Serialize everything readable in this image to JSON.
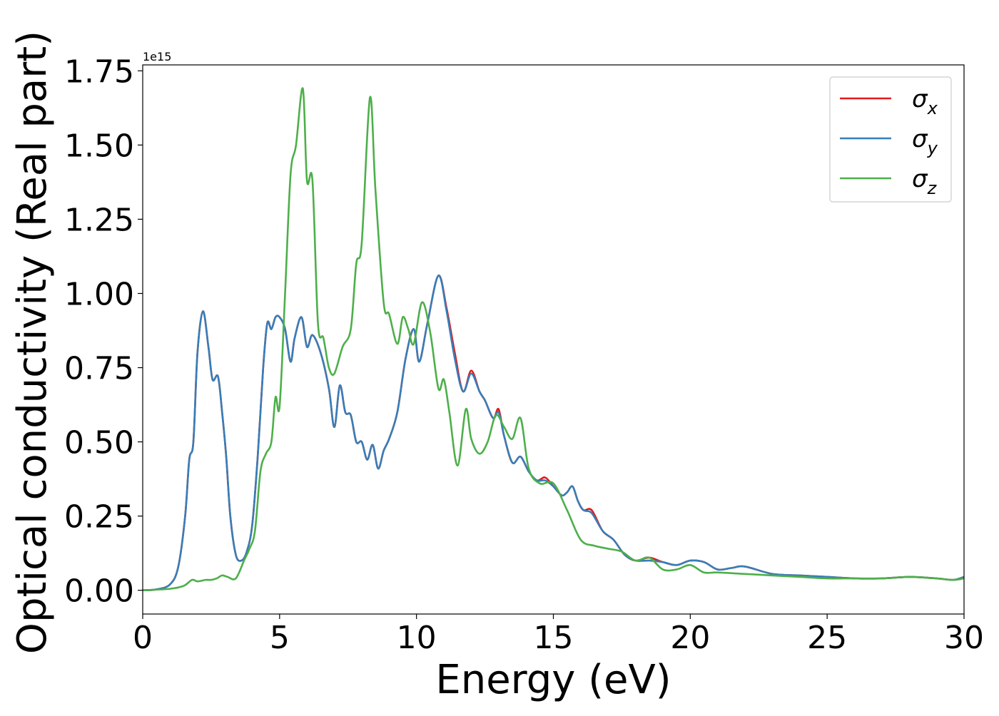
{
  "chart_data": {
    "type": "line",
    "title": "",
    "xlabel": "Energy (eV)",
    "ylabel": "Optical conductivity (Real part)",
    "y_scale_label": "1e15",
    "xlim": [
      0,
      30
    ],
    "ylim": [
      -0.08,
      1.77
    ],
    "xticks": [
      0,
      5,
      10,
      15,
      20,
      25,
      30
    ],
    "xtick_labels": [
      "0",
      "5",
      "10",
      "15",
      "20",
      "25",
      "30"
    ],
    "yticks": [
      0.0,
      0.25,
      0.5,
      0.75,
      1.0,
      1.25,
      1.5,
      1.75
    ],
    "ytick_labels": [
      "0.00",
      "0.25",
      "0.50",
      "0.75",
      "1.00",
      "1.25",
      "1.50",
      "1.75"
    ],
    "grid": false,
    "legend_position": "top-right",
    "series": [
      {
        "name": "σx",
        "legend_symbol": "σ",
        "legend_subscript": "x",
        "color": "#e41a1c",
        "x": [
          0,
          0.5,
          1.0,
          1.3,
          1.55,
          1.7,
          1.85,
          2.0,
          2.2,
          2.4,
          2.55,
          2.75,
          2.9,
          3.05,
          3.2,
          3.4,
          3.6,
          3.8,
          4.0,
          4.2,
          4.4,
          4.55,
          4.7,
          4.85,
          5.0,
          5.2,
          5.4,
          5.55,
          5.8,
          6.0,
          6.2,
          6.5,
          6.8,
          7.0,
          7.2,
          7.4,
          7.6,
          7.8,
          8.0,
          8.2,
          8.4,
          8.6,
          8.8,
          9.0,
          9.3,
          9.6,
          9.9,
          10.1,
          10.4,
          10.8,
          11.1,
          11.4,
          11.7,
          12.0,
          12.3,
          12.5,
          12.8,
          13.0,
          13.2,
          13.5,
          13.8,
          14.1,
          14.4,
          14.7,
          15.0,
          15.3,
          15.5,
          15.7,
          15.9,
          16.1,
          16.4,
          16.8,
          17.2,
          17.6,
          18.0,
          18.5,
          19.0,
          19.5,
          20.0,
          20.5,
          21.0,
          21.5,
          22.0,
          23.0,
          24.0,
          25.0,
          26.0,
          27.0,
          28.0,
          29.0,
          29.6,
          30.0
        ],
        "y": [
          0.0,
          0.003,
          0.02,
          0.08,
          0.25,
          0.44,
          0.5,
          0.8,
          0.94,
          0.82,
          0.71,
          0.72,
          0.6,
          0.45,
          0.25,
          0.12,
          0.1,
          0.13,
          0.22,
          0.45,
          0.75,
          0.9,
          0.88,
          0.92,
          0.92,
          0.88,
          0.77,
          0.85,
          0.92,
          0.82,
          0.86,
          0.8,
          0.68,
          0.55,
          0.69,
          0.6,
          0.59,
          0.5,
          0.5,
          0.44,
          0.49,
          0.41,
          0.47,
          0.51,
          0.6,
          0.78,
          0.88,
          0.77,
          0.9,
          1.06,
          0.95,
          0.8,
          0.67,
          0.74,
          0.67,
          0.64,
          0.58,
          0.61,
          0.52,
          0.43,
          0.45,
          0.4,
          0.37,
          0.38,
          0.35,
          0.32,
          0.33,
          0.35,
          0.3,
          0.27,
          0.27,
          0.2,
          0.17,
          0.12,
          0.1,
          0.11,
          0.095,
          0.085,
          0.1,
          0.095,
          0.07,
          0.075,
          0.08,
          0.055,
          0.05,
          0.045,
          0.04,
          0.04,
          0.045,
          0.04,
          0.035,
          0.045
        ]
      },
      {
        "name": "σy",
        "legend_symbol": "σ",
        "legend_subscript": "y",
        "color": "#377eb8",
        "x": [
          0,
          0.5,
          1.0,
          1.3,
          1.55,
          1.7,
          1.85,
          2.0,
          2.2,
          2.4,
          2.55,
          2.75,
          2.9,
          3.05,
          3.2,
          3.4,
          3.6,
          3.8,
          4.0,
          4.2,
          4.4,
          4.55,
          4.7,
          4.85,
          5.0,
          5.2,
          5.4,
          5.55,
          5.8,
          6.0,
          6.2,
          6.5,
          6.8,
          7.0,
          7.2,
          7.4,
          7.6,
          7.8,
          8.0,
          8.2,
          8.4,
          8.6,
          8.8,
          9.0,
          9.3,
          9.6,
          9.9,
          10.1,
          10.4,
          10.8,
          11.1,
          11.4,
          11.7,
          12.0,
          12.3,
          12.5,
          12.8,
          13.0,
          13.2,
          13.5,
          13.8,
          14.1,
          14.4,
          14.7,
          15.0,
          15.3,
          15.5,
          15.7,
          15.9,
          16.1,
          16.4,
          16.8,
          17.2,
          17.6,
          18.0,
          18.5,
          19.0,
          19.5,
          20.0,
          20.5,
          21.0,
          21.5,
          22.0,
          23.0,
          24.0,
          25.0,
          26.0,
          27.0,
          28.0,
          29.0,
          29.6,
          30.0
        ],
        "y": [
          0.0,
          0.003,
          0.02,
          0.08,
          0.25,
          0.44,
          0.5,
          0.8,
          0.94,
          0.82,
          0.71,
          0.72,
          0.6,
          0.45,
          0.25,
          0.12,
          0.1,
          0.13,
          0.22,
          0.45,
          0.75,
          0.9,
          0.88,
          0.92,
          0.92,
          0.88,
          0.77,
          0.85,
          0.92,
          0.82,
          0.86,
          0.8,
          0.68,
          0.55,
          0.69,
          0.6,
          0.59,
          0.5,
          0.5,
          0.44,
          0.49,
          0.41,
          0.47,
          0.51,
          0.6,
          0.78,
          0.88,
          0.77,
          0.9,
          1.06,
          0.94,
          0.78,
          0.67,
          0.73,
          0.67,
          0.64,
          0.58,
          0.6,
          0.52,
          0.43,
          0.45,
          0.4,
          0.37,
          0.37,
          0.35,
          0.32,
          0.33,
          0.35,
          0.3,
          0.27,
          0.26,
          0.2,
          0.17,
          0.12,
          0.1,
          0.1,
          0.095,
          0.085,
          0.1,
          0.095,
          0.07,
          0.075,
          0.08,
          0.055,
          0.05,
          0.045,
          0.04,
          0.04,
          0.045,
          0.04,
          0.035,
          0.045
        ]
      },
      {
        "name": "σz",
        "legend_symbol": "σ",
        "legend_subscript": "z",
        "color": "#4daf4a",
        "x": [
          0,
          1.0,
          1.5,
          1.8,
          2.0,
          2.3,
          2.5,
          2.7,
          2.9,
          3.1,
          3.4,
          3.7,
          3.9,
          4.1,
          4.3,
          4.5,
          4.7,
          4.85,
          5.0,
          5.2,
          5.4,
          5.6,
          5.85,
          6.0,
          6.2,
          6.4,
          6.6,
          6.8,
          7.0,
          7.3,
          7.6,
          7.8,
          8.0,
          8.3,
          8.5,
          8.8,
          9.0,
          9.3,
          9.5,
          9.7,
          9.9,
          10.2,
          10.5,
          10.8,
          11.0,
          11.2,
          11.5,
          11.8,
          12.0,
          12.3,
          12.6,
          12.9,
          13.2,
          13.5,
          13.8,
          14.1,
          14.5,
          15.0,
          15.5,
          16.0,
          16.5,
          17.0,
          17.5,
          18.0,
          18.5,
          19.0,
          19.5,
          20.0,
          20.5,
          21.0,
          22.0,
          23.0,
          24.0,
          25.0,
          26.0,
          27.0,
          28.0,
          29.0,
          29.6,
          30.0
        ],
        "y": [
          0.0,
          0.005,
          0.015,
          0.035,
          0.03,
          0.035,
          0.035,
          0.04,
          0.05,
          0.045,
          0.04,
          0.1,
          0.14,
          0.2,
          0.4,
          0.46,
          0.5,
          0.65,
          0.62,
          1.0,
          1.4,
          1.5,
          1.69,
          1.38,
          1.38,
          0.9,
          0.85,
          0.75,
          0.73,
          0.82,
          0.88,
          1.1,
          1.17,
          1.66,
          1.35,
          0.97,
          0.93,
          0.83,
          0.92,
          0.88,
          0.83,
          0.97,
          0.87,
          0.68,
          0.71,
          0.6,
          0.42,
          0.61,
          0.51,
          0.46,
          0.5,
          0.59,
          0.55,
          0.51,
          0.58,
          0.41,
          0.36,
          0.36,
          0.27,
          0.17,
          0.15,
          0.14,
          0.13,
          0.1,
          0.11,
          0.07,
          0.07,
          0.085,
          0.06,
          0.06,
          0.055,
          0.05,
          0.045,
          0.04,
          0.04,
          0.04,
          0.045,
          0.04,
          0.035,
          0.04
        ]
      }
    ]
  }
}
